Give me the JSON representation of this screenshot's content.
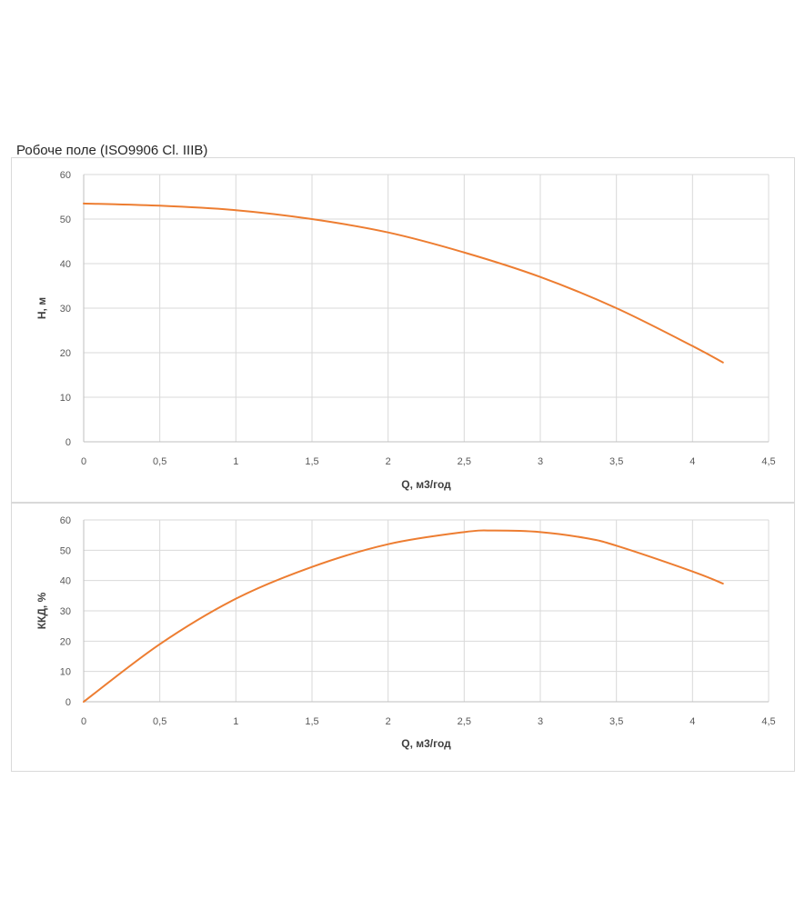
{
  "page_title": "Робоче поле (ISO9906 Cl. IIIB)",
  "chart_data": [
    {
      "type": "line",
      "title": "",
      "xlabel": "Q, м3/год",
      "ylabel": "H, м",
      "xlim": [
        0,
        4.5
      ],
      "ylim": [
        0,
        60
      ],
      "x_ticks": [
        "0",
        "0,5",
        "1",
        "1,5",
        "2",
        "2,5",
        "3",
        "3,5",
        "4",
        "4,5"
      ],
      "y_ticks": [
        "0",
        "10",
        "20",
        "30",
        "40",
        "50",
        "60"
      ],
      "grid": true,
      "legend": "none",
      "color": "#ED7D31",
      "series": [
        {
          "x": [
            0,
            0.5,
            1,
            1.5,
            2,
            2.5,
            3,
            3.5,
            4,
            4.2
          ],
          "y": [
            53.5,
            53,
            52,
            50,
            47,
            42.5,
            37,
            30,
            21.5,
            17.8
          ]
        }
      ]
    },
    {
      "type": "line",
      "title": "",
      "xlabel": "Q, м3/год",
      "ylabel": "ККД, %",
      "xlim": [
        0,
        4.5
      ],
      "ylim": [
        0,
        60
      ],
      "x_ticks": [
        "0",
        "0,5",
        "1",
        "1,5",
        "2",
        "2,5",
        "3",
        "3,5",
        "4",
        "4,5"
      ],
      "y_ticks": [
        "0",
        "10",
        "20",
        "30",
        "40",
        "50",
        "60"
      ],
      "grid": true,
      "legend": "none",
      "color": "#ED7D31",
      "series": [
        {
          "x": [
            0,
            0.5,
            1,
            1.5,
            2,
            2.5,
            2.7,
            3,
            3.3,
            3.5,
            4,
            4.2
          ],
          "y": [
            0,
            19,
            34,
            44.5,
            52,
            56,
            56.5,
            56,
            54,
            51.5,
            43,
            39
          ]
        }
      ]
    }
  ]
}
